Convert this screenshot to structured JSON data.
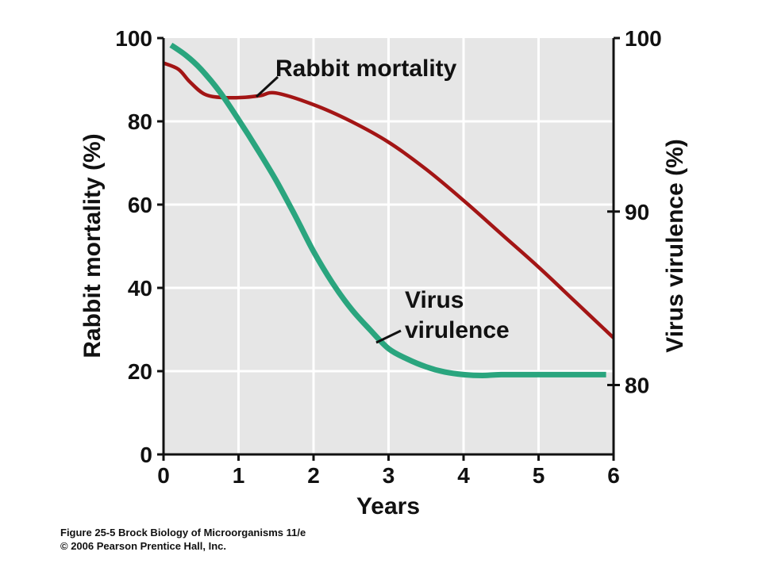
{
  "chart_data": {
    "type": "line",
    "xlabel": "Years",
    "ylabel_left": "Rabbit mortality (%)",
    "ylabel_right": "Virus virulence (%)",
    "xlim": [
      0,
      6
    ],
    "ylim_left": [
      0,
      100
    ],
    "ylim_right": [
      76,
      100
    ],
    "x_ticks": [
      0,
      1,
      2,
      3,
      4,
      5,
      6
    ],
    "y_ticks_left": [
      0,
      20,
      40,
      60,
      80,
      100
    ],
    "y_ticks_right": [
      80,
      90,
      100
    ],
    "grid": true,
    "plot_background": "#e6e6e6",
    "series": [
      {
        "name": "Rabbit mortality",
        "axis": "left",
        "color": "#a31515",
        "x": [
          0,
          0.2,
          0.35,
          0.55,
          0.8,
          1.1,
          1.3,
          1.5,
          2.0,
          2.5,
          3.0,
          3.5,
          4.0,
          4.5,
          5.0,
          5.5,
          6.0
        ],
        "y": [
          94,
          92.5,
          89.5,
          86.5,
          85.7,
          85.8,
          86.2,
          86.8,
          84,
          80,
          75,
          68.5,
          61,
          53,
          45,
          36.5,
          28
        ]
      },
      {
        "name": "Virus virulence",
        "axis": "right",
        "color": "#2aa57e",
        "x": [
          0.1,
          0.3,
          0.5,
          0.75,
          1.0,
          1.25,
          1.5,
          1.75,
          2.0,
          2.25,
          2.5,
          2.75,
          3.0,
          3.25,
          3.5,
          3.75,
          4.0,
          4.25,
          4.5,
          5.0,
          5.5,
          5.9
        ],
        "y": [
          99.6,
          99.0,
          98.2,
          96.9,
          95.3,
          93.6,
          91.8,
          89.8,
          87.7,
          85.9,
          84.4,
          83.2,
          82.1,
          81.5,
          81.05,
          80.75,
          80.6,
          80.55,
          80.6,
          80.6,
          80.6,
          80.6
        ]
      }
    ],
    "annotations": [
      {
        "lines": [
          "Rabbit mortality"
        ],
        "series": "Rabbit mortality"
      },
      {
        "lines": [
          "Virus",
          "virulence"
        ],
        "series": "Virus virulence"
      }
    ]
  },
  "caption": {
    "line1": "Figure 25-5 Brock Biology of Microorganisms 11/e",
    "line2": "© 2006 Pearson Prentice Hall, Inc."
  }
}
